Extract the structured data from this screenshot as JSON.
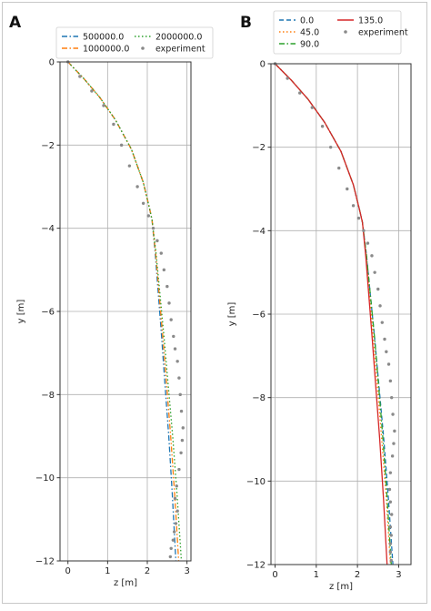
{
  "figure": {
    "panels": [
      "A",
      "B"
    ]
  },
  "chart_data": [
    {
      "panel": "A",
      "type": "line",
      "title": "",
      "xlabel": "z [m]",
      "ylabel": "y [m]",
      "xlim": [
        -0.2,
        3.1
      ],
      "ylim": [
        -12,
        0
      ],
      "xticks": [
        0,
        1,
        2,
        3
      ],
      "yticks": [
        0,
        -2,
        -4,
        -6,
        -8,
        -10,
        -12
      ],
      "grid": true,
      "legend": {
        "placement": "top",
        "columns": 2
      },
      "series": [
        {
          "name": "500000.0",
          "style": "dashdot",
          "color": "#1f77b4",
          "x": [
            0,
            0.4,
            0.8,
            1.2,
            1.6,
            1.9,
            2.05,
            2.12,
            2.2,
            2.28,
            2.36,
            2.45,
            2.54,
            2.63,
            2.72
          ],
          "y": [
            0,
            -0.4,
            -0.85,
            -1.4,
            -2.1,
            -2.9,
            -3.5,
            -3.8,
            -4.6,
            -5.6,
            -6.6,
            -7.8,
            -9.0,
            -10.4,
            -12
          ]
        },
        {
          "name": "1000000.0",
          "style": "dashdot",
          "color": "#ff7f0e",
          "x": [
            0,
            0.4,
            0.8,
            1.2,
            1.6,
            1.9,
            2.05,
            2.12,
            2.21,
            2.3,
            2.39,
            2.49,
            2.59,
            2.69,
            2.79
          ],
          "y": [
            0,
            -0.4,
            -0.85,
            -1.4,
            -2.1,
            -2.9,
            -3.5,
            -3.8,
            -4.6,
            -5.6,
            -6.6,
            -7.8,
            -9.0,
            -10.4,
            -12
          ]
        },
        {
          "name": "2000000.0",
          "style": "dotted",
          "color": "#2ca02c",
          "x": [
            0,
            0.4,
            0.8,
            1.2,
            1.6,
            1.9,
            2.05,
            2.12,
            2.22,
            2.32,
            2.42,
            2.53,
            2.64,
            2.75,
            2.86
          ],
          "y": [
            0,
            -0.4,
            -0.85,
            -1.4,
            -2.1,
            -2.9,
            -3.5,
            -3.8,
            -4.6,
            -5.6,
            -6.6,
            -7.8,
            -9.0,
            -10.4,
            -12
          ]
        },
        {
          "name": "experiment",
          "style": "points",
          "color": "#8a8a8a",
          "x": [
            0,
            0.3,
            0.6,
            0.9,
            1.15,
            1.35,
            1.55,
            1.75,
            1.9,
            2.03,
            2.15,
            2.25,
            2.35,
            2.42,
            2.5,
            2.55,
            2.6,
            2.66,
            2.7,
            2.76,
            2.8,
            2.83,
            2.86,
            2.9,
            2.88,
            2.85,
            2.8,
            2.74,
            2.7,
            2.76,
            2.72,
            2.68,
            2.65,
            2.6,
            2.58
          ],
          "y": [
            0,
            -0.35,
            -0.7,
            -1.05,
            -1.5,
            -2.0,
            -2.5,
            -3.0,
            -3.4,
            -3.7,
            -4.0,
            -4.3,
            -4.6,
            -5.0,
            -5.4,
            -5.8,
            -6.2,
            -6.6,
            -6.9,
            -7.2,
            -7.6,
            -8.0,
            -8.4,
            -8.8,
            -9.1,
            -9.4,
            -9.8,
            -10.2,
            -10.5,
            -10.8,
            -11.1,
            -11.3,
            -11.5,
            -11.7,
            -11.9
          ]
        }
      ]
    },
    {
      "panel": "B",
      "type": "line",
      "title": "",
      "xlabel": "z [m]",
      "ylabel": "y [m]",
      "xlim": [
        -0.1,
        3.3
      ],
      "ylim": [
        -12,
        0
      ],
      "xticks": [
        0,
        1,
        2,
        3
      ],
      "yticks": [
        0,
        -2,
        -4,
        -6,
        -8,
        -10,
        -12
      ],
      "grid": true,
      "legend": {
        "placement": "top",
        "columns": 2
      },
      "series": [
        {
          "name": "0.0",
          "style": "dashed",
          "color": "#1f77b4",
          "x": [
            0,
            0.4,
            0.8,
            1.2,
            1.6,
            1.9,
            2.05,
            2.12,
            2.22,
            2.32,
            2.42,
            2.53,
            2.64,
            2.75,
            2.86
          ],
          "y": [
            0,
            -0.4,
            -0.85,
            -1.4,
            -2.1,
            -2.9,
            -3.5,
            -3.8,
            -4.6,
            -5.6,
            -6.6,
            -7.8,
            -9.0,
            -10.4,
            -12
          ]
        },
        {
          "name": "45.0",
          "style": "dotted",
          "color": "#ff7f0e",
          "x": [
            0,
            0.4,
            0.8,
            1.2,
            1.6,
            1.9,
            2.05,
            2.12,
            2.21,
            2.3,
            2.39,
            2.49,
            2.59,
            2.7,
            2.8
          ],
          "y": [
            0,
            -0.4,
            -0.85,
            -1.4,
            -2.1,
            -2.9,
            -3.5,
            -3.8,
            -4.6,
            -5.6,
            -6.6,
            -7.8,
            -9.0,
            -10.4,
            -12
          ]
        },
        {
          "name": "90.0",
          "style": "dashdot",
          "color": "#2ca02c",
          "x": [
            0,
            0.4,
            0.8,
            1.2,
            1.6,
            1.9,
            2.05,
            2.12,
            2.22,
            2.32,
            2.42,
            2.52,
            2.62,
            2.72,
            2.82
          ],
          "y": [
            0,
            -0.4,
            -0.85,
            -1.4,
            -2.1,
            -2.9,
            -3.5,
            -3.8,
            -4.6,
            -5.6,
            -6.6,
            -7.8,
            -9.0,
            -10.4,
            -12
          ]
        },
        {
          "name": "135.0",
          "style": "solid",
          "color": "#d62728",
          "x": [
            0,
            0.4,
            0.8,
            1.2,
            1.6,
            1.9,
            2.05,
            2.12,
            2.2,
            2.28,
            2.36,
            2.45,
            2.54,
            2.63,
            2.72
          ],
          "y": [
            0,
            -0.4,
            -0.85,
            -1.4,
            -2.1,
            -2.9,
            -3.5,
            -3.8,
            -4.6,
            -5.6,
            -6.6,
            -7.8,
            -9.0,
            -10.4,
            -12
          ]
        },
        {
          "name": "experiment",
          "style": "points",
          "color": "#8a8a8a",
          "x": [
            0,
            0.3,
            0.6,
            0.9,
            1.15,
            1.35,
            1.55,
            1.75,
            1.9,
            2.03,
            2.15,
            2.25,
            2.35,
            2.42,
            2.5,
            2.55,
            2.6,
            2.66,
            2.7,
            2.76,
            2.8,
            2.83,
            2.86,
            2.9,
            2.88,
            2.85,
            2.8,
            2.78,
            2.8,
            2.83,
            2.8,
            2.82,
            2.8,
            2.8,
            2.82
          ],
          "y": [
            0,
            -0.35,
            -0.7,
            -1.05,
            -1.5,
            -2.0,
            -2.5,
            -3.0,
            -3.4,
            -3.7,
            -4.0,
            -4.3,
            -4.6,
            -5.0,
            -5.4,
            -5.8,
            -6.2,
            -6.6,
            -6.9,
            -7.2,
            -7.6,
            -8.0,
            -8.4,
            -8.8,
            -9.1,
            -9.4,
            -9.8,
            -10.2,
            -10.5,
            -10.8,
            -11.1,
            -11.3,
            -11.5,
            -11.7,
            -11.9
          ]
        }
      ]
    }
  ]
}
